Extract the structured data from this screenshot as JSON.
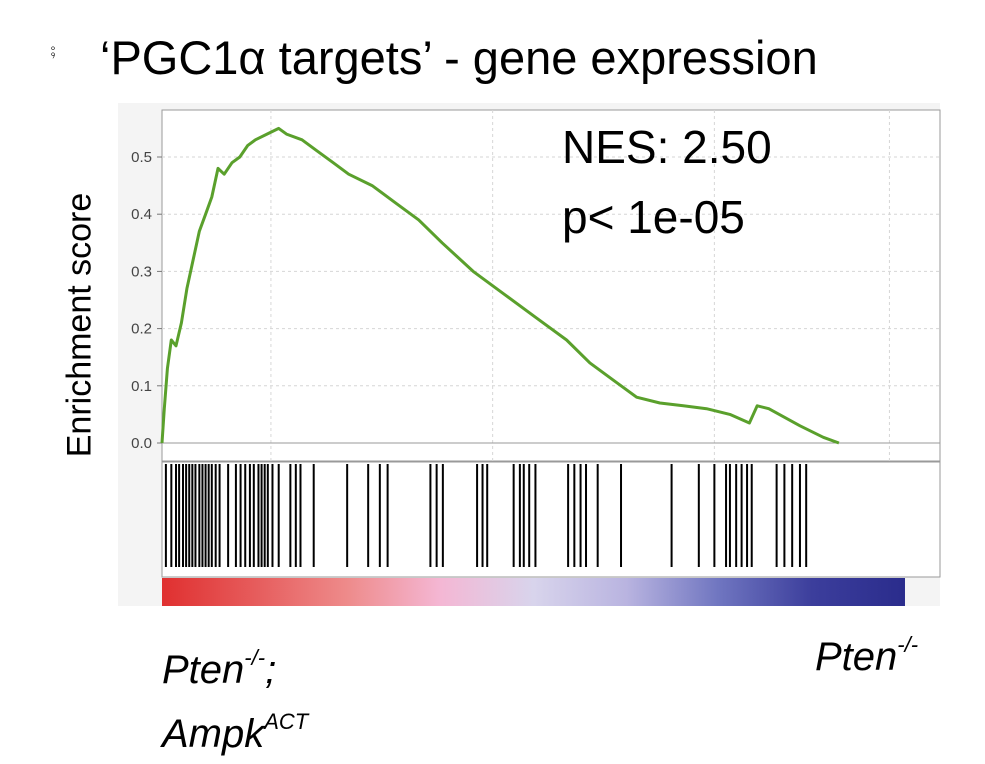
{
  "title": "‘PGC1α targets’ - gene expression",
  "corner_mark": "⨾",
  "chart_data": {
    "type": "line",
    "ylabel": "Enrichment score",
    "ylim": [
      0.0,
      0.55
    ],
    "yticks": [
      "0.0",
      "0.1",
      "0.2",
      "0.3",
      "0.4",
      "0.5"
    ],
    "grid": true,
    "annotations": {
      "nes": "NES: 2.50",
      "p": "p< 1e-05"
    },
    "series": [
      {
        "color": "#5aa02c",
        "points": [
          [
            0.0,
            0.0
          ],
          [
            0.003,
            0.06
          ],
          [
            0.007,
            0.13
          ],
          [
            0.012,
            0.18
          ],
          [
            0.018,
            0.17
          ],
          [
            0.025,
            0.21
          ],
          [
            0.032,
            0.27
          ],
          [
            0.04,
            0.32
          ],
          [
            0.048,
            0.37
          ],
          [
            0.056,
            0.4
          ],
          [
            0.064,
            0.43
          ],
          [
            0.072,
            0.48
          ],
          [
            0.08,
            0.47
          ],
          [
            0.09,
            0.49
          ],
          [
            0.1,
            0.5
          ],
          [
            0.11,
            0.52
          ],
          [
            0.12,
            0.53
          ],
          [
            0.135,
            0.54
          ],
          [
            0.15,
            0.55
          ],
          [
            0.16,
            0.54
          ],
          [
            0.18,
            0.53
          ],
          [
            0.2,
            0.51
          ],
          [
            0.22,
            0.49
          ],
          [
            0.24,
            0.47
          ],
          [
            0.27,
            0.45
          ],
          [
            0.3,
            0.42
          ],
          [
            0.33,
            0.39
          ],
          [
            0.36,
            0.35
          ],
          [
            0.4,
            0.3
          ],
          [
            0.44,
            0.26
          ],
          [
            0.48,
            0.22
          ],
          [
            0.52,
            0.18
          ],
          [
            0.55,
            0.14
          ],
          [
            0.58,
            0.11
          ],
          [
            0.61,
            0.08
          ],
          [
            0.64,
            0.07
          ],
          [
            0.67,
            0.065
          ],
          [
            0.7,
            0.06
          ],
          [
            0.73,
            0.05
          ],
          [
            0.755,
            0.035
          ],
          [
            0.765,
            0.065
          ],
          [
            0.78,
            0.06
          ],
          [
            0.82,
            0.03
          ],
          [
            0.85,
            0.01
          ],
          [
            0.87,
            0.0
          ]
        ]
      }
    ],
    "hits": [
      0.005,
      0.012,
      0.018,
      0.022,
      0.027,
      0.031,
      0.035,
      0.039,
      0.043,
      0.048,
      0.052,
      0.056,
      0.06,
      0.064,
      0.069,
      0.074,
      0.085,
      0.095,
      0.101,
      0.107,
      0.113,
      0.118,
      0.124,
      0.128,
      0.132,
      0.136,
      0.142,
      0.15,
      0.165,
      0.172,
      0.178,
      0.195,
      0.238,
      0.265,
      0.28,
      0.29,
      0.345,
      0.353,
      0.361,
      0.405,
      0.412,
      0.418,
      0.452,
      0.46,
      0.465,
      0.472,
      0.48,
      0.522,
      0.53,
      0.538,
      0.545,
      0.56,
      0.59,
      0.655,
      0.69,
      0.71,
      0.725,
      0.73,
      0.738,
      0.745,
      0.752,
      0.758,
      0.79,
      0.8,
      0.81,
      0.82,
      0.828
    ],
    "rank_gradient": [
      "#e03030",
      "#e65c5c",
      "#ee8b8b",
      "#f4b7d4",
      "#d8d4ec",
      "#b9b4e0",
      "#6f75c0",
      "#3c3e9c",
      "#2a2c8c"
    ],
    "phenotype_labels": {
      "left_line1": "Pten",
      "left_line1_sup": "-/-",
      "left_line1_suffix": ";",
      "left_line2": "Ampk",
      "left_line2_sup": "ACT",
      "right": "Pten",
      "right_sup": "-/-"
    }
  }
}
